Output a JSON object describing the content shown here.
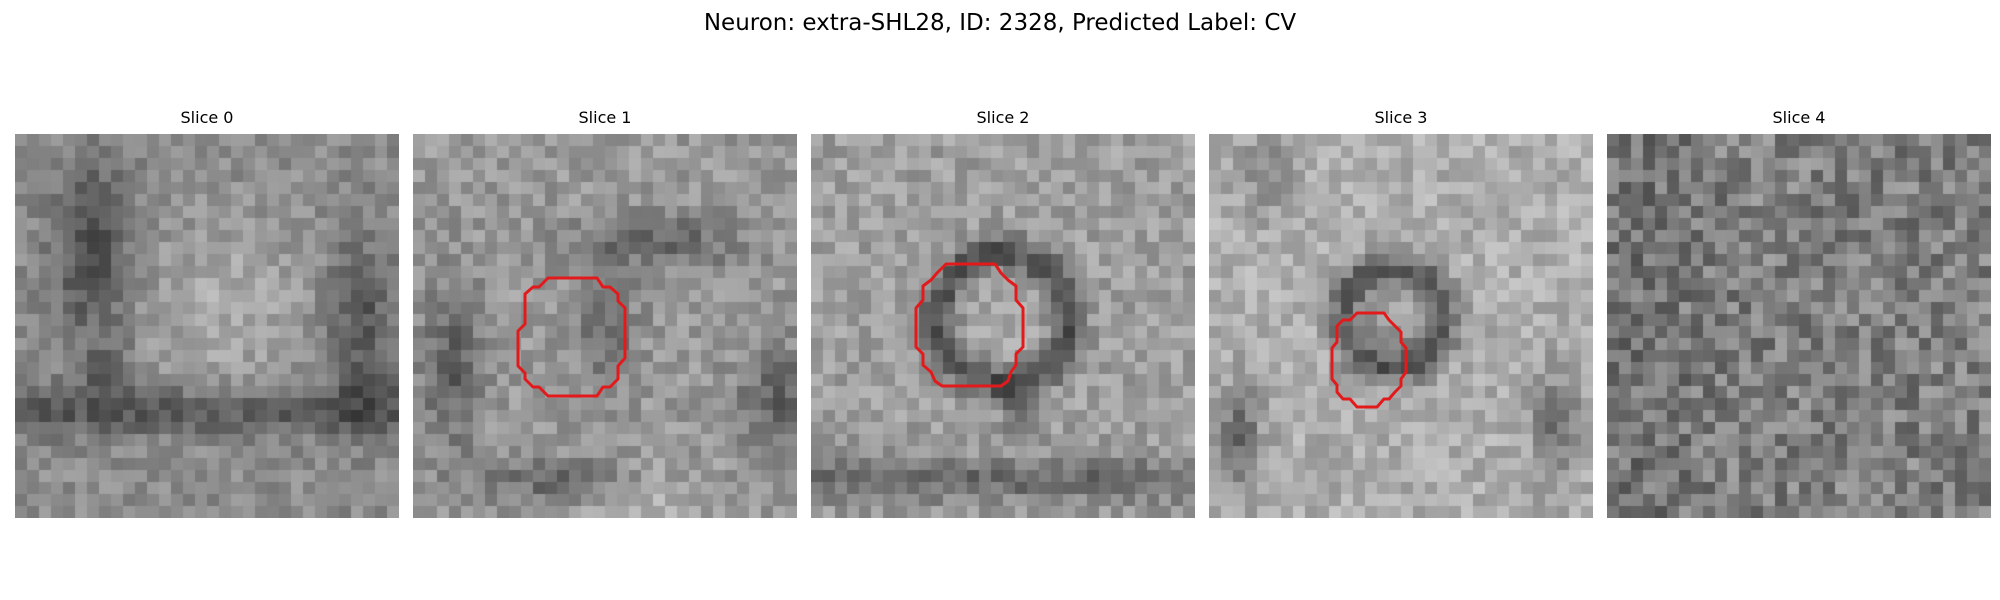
{
  "figure": {
    "title": "Neuron: extra-SHL28, ID: 2328, Predicted Label: CV"
  },
  "colors": {
    "outline": "#e31a1c",
    "background": "#ffffff"
  },
  "panels": [
    {
      "title": "Slice 0",
      "has_outline": false
    },
    {
      "title": "Slice 1",
      "has_outline": true
    },
    {
      "title": "Slice 2",
      "has_outline": true
    },
    {
      "title": "Slice 3",
      "has_outline": true
    },
    {
      "title": "Slice 4",
      "has_outline": false
    }
  ]
}
